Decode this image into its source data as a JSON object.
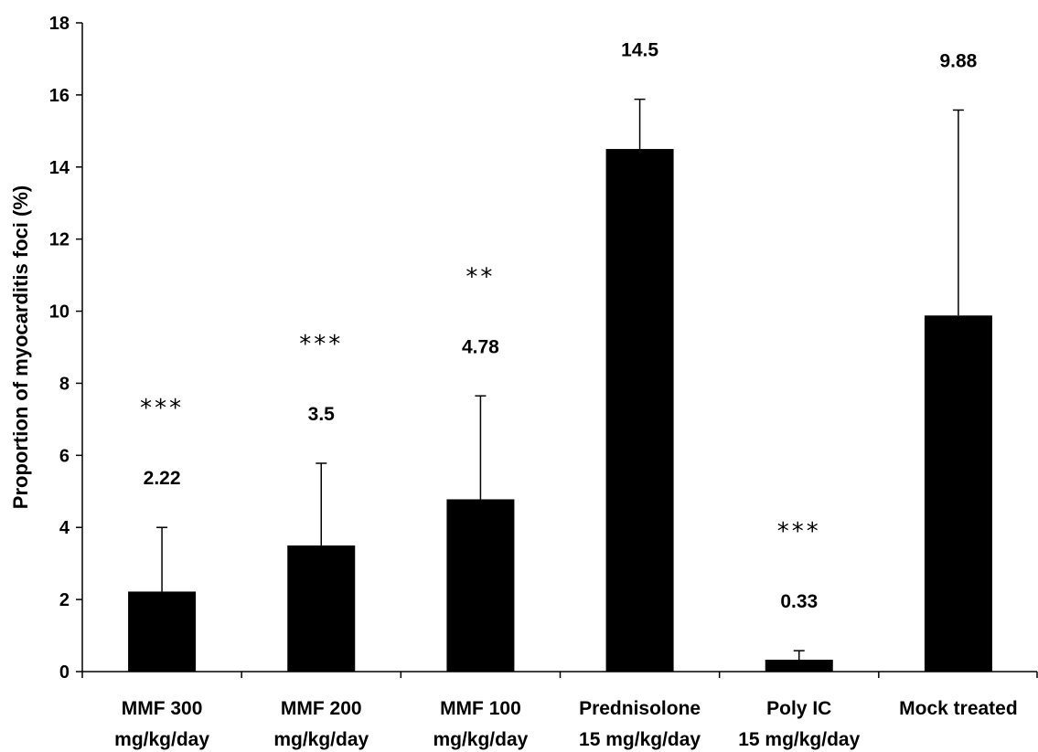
{
  "chart_data": {
    "type": "bar",
    "title": "",
    "xlabel": "",
    "ylabel": "Proportion of myocarditis foci (%)",
    "ylim": [
      0,
      18
    ],
    "yticks": [
      0,
      2,
      4,
      6,
      8,
      10,
      12,
      14,
      16,
      18
    ],
    "grid": false,
    "legend": "none",
    "bar_color": "#000000",
    "categories": [
      [
        "MMF 300",
        "mg/kg/day"
      ],
      [
        "MMF 200",
        "mg/kg/day"
      ],
      [
        "MMF 100",
        "mg/kg/day"
      ],
      [
        "Prednisolone",
        "15 mg/kg/day"
      ],
      [
        "Poly IC",
        "15 mg/kg/day"
      ],
      [
        "Mock treated"
      ]
    ],
    "values": [
      2.22,
      3.5,
      4.78,
      14.5,
      0.33,
      9.88
    ],
    "error_upper": [
      4.0,
      5.78,
      7.65,
      15.88,
      0.58,
      15.58
    ],
    "data_labels": [
      "2.22",
      "3.5",
      "4.78",
      "14.5",
      "0.33",
      "9.88"
    ],
    "significance": [
      "***",
      "***",
      "**",
      "",
      "***",
      ""
    ]
  }
}
